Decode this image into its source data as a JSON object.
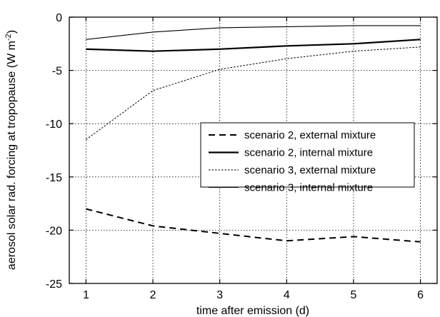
{
  "chart_data": {
    "type": "line",
    "xlabel": "time after emission (d)",
    "ylabel_main": "aerosol solar rad. forcing at tropopause (W m",
    "ylabel_sup": "-2",
    "ylabel_close": ")",
    "xlim": [
      0.75,
      6.25
    ],
    "ylim": [
      -25,
      0
    ],
    "xticks": [
      1,
      2,
      3,
      4,
      5,
      6
    ],
    "yticks": [
      0,
      -5,
      -10,
      -15,
      -20,
      -25
    ],
    "grid": true,
    "legend_position": "center-right",
    "x": [
      1,
      2,
      3,
      4,
      5,
      6
    ],
    "series": [
      {
        "name": "scenario 2, external mixture",
        "style": "dashed-thick",
        "values": [
          -18.0,
          -19.6,
          -20.3,
          -21.0,
          -20.6,
          -21.1
        ]
      },
      {
        "name": "scenario 2, internal mixture",
        "style": "solid-thick",
        "values": [
          -3.0,
          -3.2,
          -3.0,
          -2.7,
          -2.5,
          -2.1
        ]
      },
      {
        "name": "scenario 3, external mixture",
        "style": "dotted-thin",
        "values": [
          -11.5,
          -6.9,
          -4.9,
          -3.9,
          -3.2,
          -2.8
        ]
      },
      {
        "name": "scenario 3, internal mixture",
        "style": "solid-thin",
        "values": [
          -2.1,
          -1.4,
          -1.0,
          -0.9,
          -0.8,
          -0.8
        ]
      }
    ],
    "colors": {
      "line": "#000000",
      "grid": "#000000",
      "background": "#ffffff"
    }
  }
}
